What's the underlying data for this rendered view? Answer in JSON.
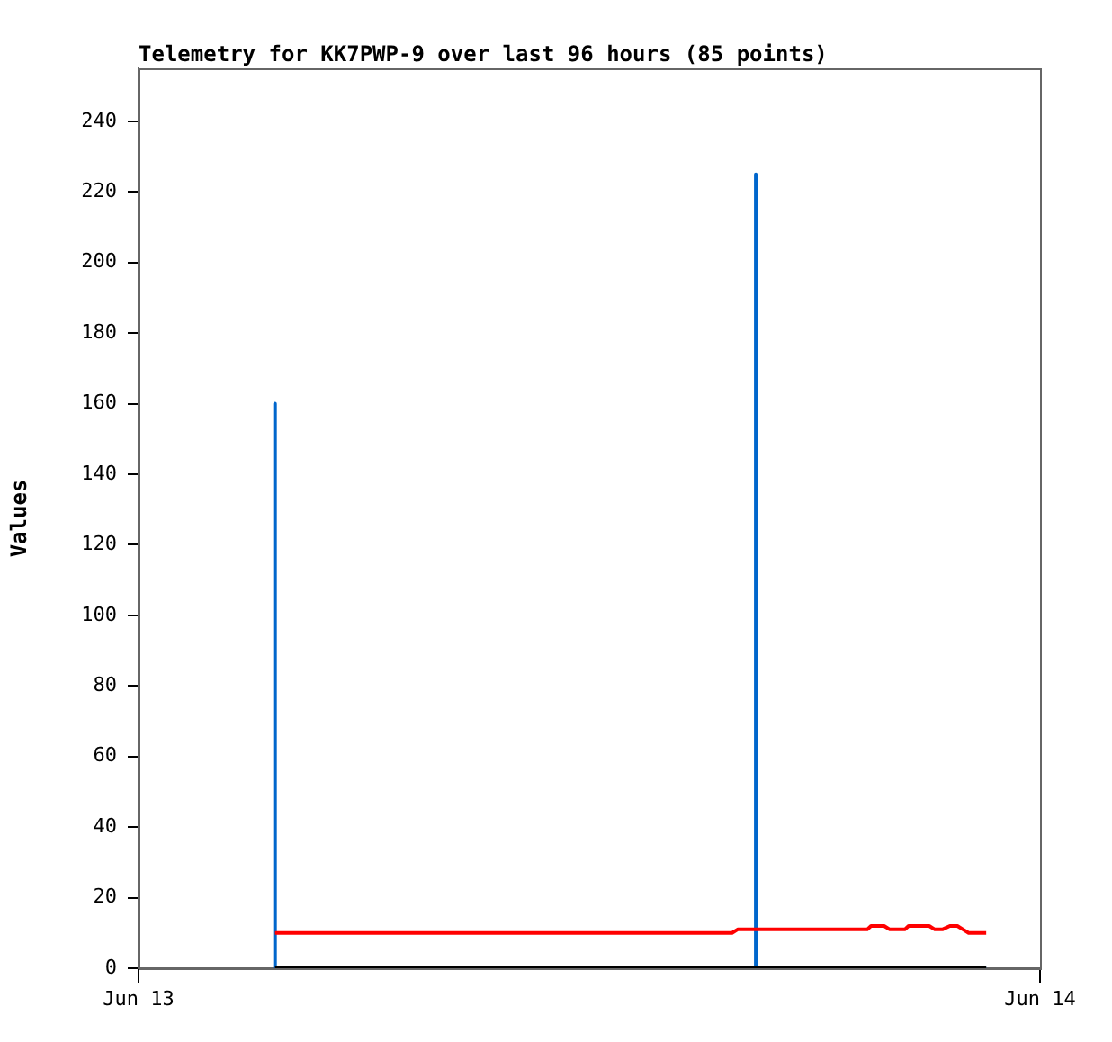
{
  "chart_data": {
    "type": "line",
    "title": "Telemetry for KK7PWP-9 over last 96 hours (85 points)",
    "ylabel": "Values",
    "xlim": [
      "--06-13",
      "--06-14"
    ],
    "xticks": [
      {
        "value": "--06-13",
        "label": "Jun 13"
      },
      {
        "value": "--06-14",
        "label": "Jun 14"
      }
    ],
    "ylim": [
      0,
      255
    ],
    "yticks": [
      0,
      20,
      40,
      60,
      80,
      100,
      120,
      140,
      160,
      180,
      200,
      220,
      240
    ],
    "marker": "none",
    "series": [
      {
        "color": "#0066cc",
        "x": [
          "--06-13T03:38",
          "--06-13T03:38",
          "--06-13T16:26",
          "--06-13T16:26",
          "--06-13T16:26",
          "--06-13T22:34"
        ],
        "values": [
          160,
          0,
          0,
          225,
          0,
          0
        ]
      },
      {
        "color": "#ff0000",
        "x": [
          "--06-13T03:38",
          "--06-13T15:48",
          "--06-13T15:57",
          "--06-13T19:24",
          "--06-13T19:30",
          "--06-13T19:51",
          "--06-13T20:00",
          "--06-13T20:24",
          "--06-13T20:30",
          "--06-13T21:03",
          "--06-13T21:12",
          "--06-13T21:24",
          "--06-13T21:36",
          "--06-13T21:48",
          "--06-13T21:57",
          "--06-13T22:06",
          "--06-13T22:34"
        ],
        "values": [
          10,
          10,
          11,
          11,
          12,
          12,
          11,
          11,
          12,
          12,
          11,
          11,
          12,
          12,
          11,
          10,
          10
        ]
      },
      {
        "color": "#000000",
        "x": [
          "--06-13T03:38",
          "--06-13T22:34"
        ],
        "values": [
          0,
          0
        ]
      }
    ]
  }
}
